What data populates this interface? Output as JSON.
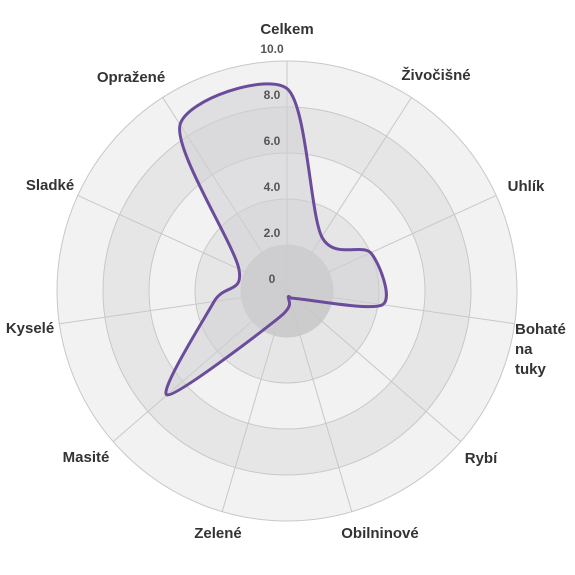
{
  "chart_data": {
    "type": "radar",
    "categories": [
      "Celkem",
      "Živočišné",
      "Uhlík",
      "Bohaté na tuky",
      "Rybí",
      "Obilninové",
      "Zelené",
      "Masité",
      "Kyselé",
      "Sladké",
      "Opražené"
    ],
    "series": [
      {
        "values": [
          8.8,
          2.8,
          4.0,
          4.2,
          0.5,
          0.3,
          1.2,
          6.9,
          3.2,
          2.3,
          8.6
        ]
      }
    ],
    "rlim": [
      0,
      10
    ],
    "ticks": [
      "0",
      "2.0",
      "4.0",
      "6.0",
      "8.0",
      "10.0"
    ],
    "colors": {
      "line": "#6B4C9A",
      "fill": "#cfcfd4",
      "band_dark": "#e6e6e6",
      "band_light": "#f2f2f2",
      "spoke": "#c8c8c8",
      "center": "#cccccc"
    }
  }
}
